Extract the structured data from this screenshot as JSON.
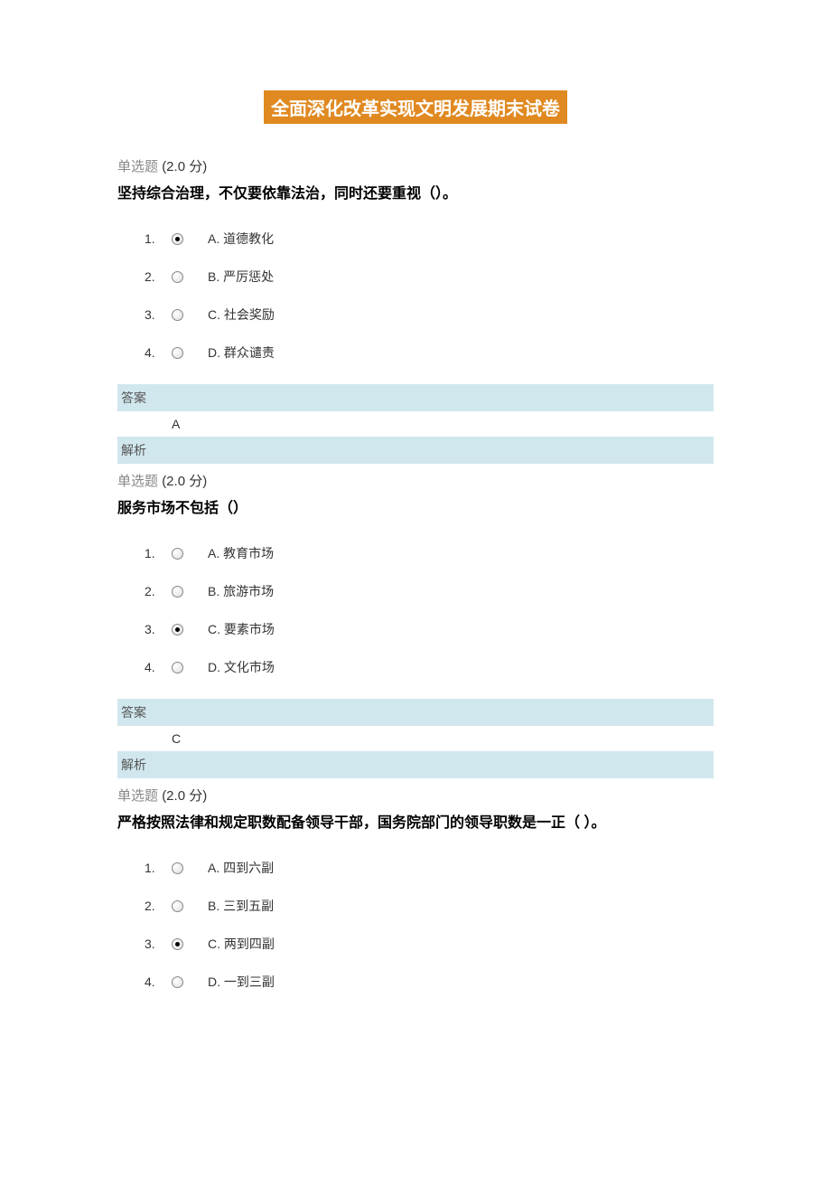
{
  "title": "全面深化改革实现文明发展期末试卷",
  "colors": {
    "title_bg": "#e08921",
    "title_text": "#ffffff",
    "answer_bg": "#d0e7ed",
    "body_bg": "#ffffff",
    "text_primary": "#000000",
    "text_secondary": "#333333",
    "text_muted": "#888888"
  },
  "questions": [
    {
      "type_label": "单选题",
      "points": "(2.0 分)",
      "text": "坚持综合治理，不仅要依靠法治，同时还要重视（）。",
      "options": [
        {
          "num": "1.",
          "letter": "A.",
          "text": "道德教化",
          "selected": true
        },
        {
          "num": "2.",
          "letter": "B.",
          "text": "严厉惩处",
          "selected": false
        },
        {
          "num": "3.",
          "letter": "C.",
          "text": "社会奖励",
          "selected": false
        },
        {
          "num": "4.",
          "letter": "D.",
          "text": "群众谴责",
          "selected": false
        }
      ],
      "answer_label": "答案",
      "answer_value": "A",
      "explain_label": "解析"
    },
    {
      "type_label": "单选题",
      "points": "(2.0 分)",
      "text": "服务市场不包括（）",
      "options": [
        {
          "num": "1.",
          "letter": "A.",
          "text": "教育市场",
          "selected": false
        },
        {
          "num": "2.",
          "letter": "B.",
          "text": "旅游市场",
          "selected": false
        },
        {
          "num": "3.",
          "letter": "C.",
          "text": "要素市场",
          "selected": true
        },
        {
          "num": "4.",
          "letter": "D.",
          "text": "文化市场",
          "selected": false
        }
      ],
      "answer_label": "答案",
      "answer_value": "C",
      "explain_label": "解析"
    },
    {
      "type_label": "单选题",
      "points": "(2.0 分)",
      "text": "严格按照法律和规定职数配备领导干部，国务院部门的领导职数是一正（ ）。",
      "options": [
        {
          "num": "1.",
          "letter": "A.",
          "text": "四到六副",
          "selected": false
        },
        {
          "num": "2.",
          "letter": "B.",
          "text": "三到五副",
          "selected": false
        },
        {
          "num": "3.",
          "letter": "C.",
          "text": "两到四副",
          "selected": true
        },
        {
          "num": "4.",
          "letter": "D.",
          "text": "一到三副",
          "selected": false
        }
      ]
    }
  ]
}
